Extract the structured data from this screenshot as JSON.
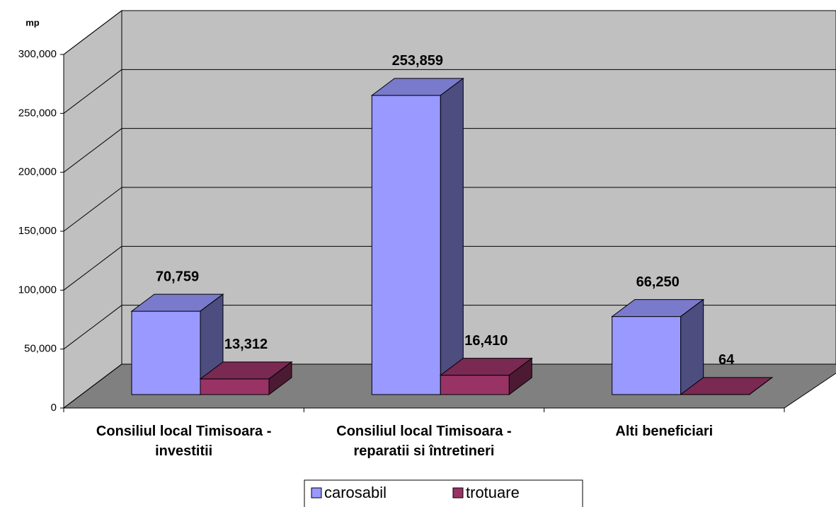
{
  "chart_data": {
    "type": "bar3d",
    "y_label": "mp",
    "categories": [
      "Consiliul local Timisoara - investitii",
      "Consiliul local Timisoara - reparatii si întretineri",
      "Alti beneficiari"
    ],
    "series": [
      {
        "name": "carosabil",
        "color": "#9999ff",
        "values": [
          70759,
          253859,
          66250
        ],
        "value_labels": [
          "70,759",
          "253,859",
          "66,250"
        ]
      },
      {
        "name": "trotuare",
        "color": "#993366",
        "values": [
          13312,
          16410,
          64
        ],
        "value_labels": [
          "13,312",
          "16,410",
          "64"
        ]
      }
    ],
    "ylim": [
      0,
      300000
    ],
    "yticks": [
      {
        "value": 0,
        "label": "0"
      },
      {
        "value": 50000,
        "label": "50,000"
      },
      {
        "value": 100000,
        "label": "100,000"
      },
      {
        "value": 150000,
        "label": "150,000"
      },
      {
        "value": 200000,
        "label": "200,000"
      },
      {
        "value": 250000,
        "label": "250,000"
      },
      {
        "value": 300000,
        "label": "300,000"
      }
    ],
    "grid": true,
    "legend": "bottom"
  }
}
